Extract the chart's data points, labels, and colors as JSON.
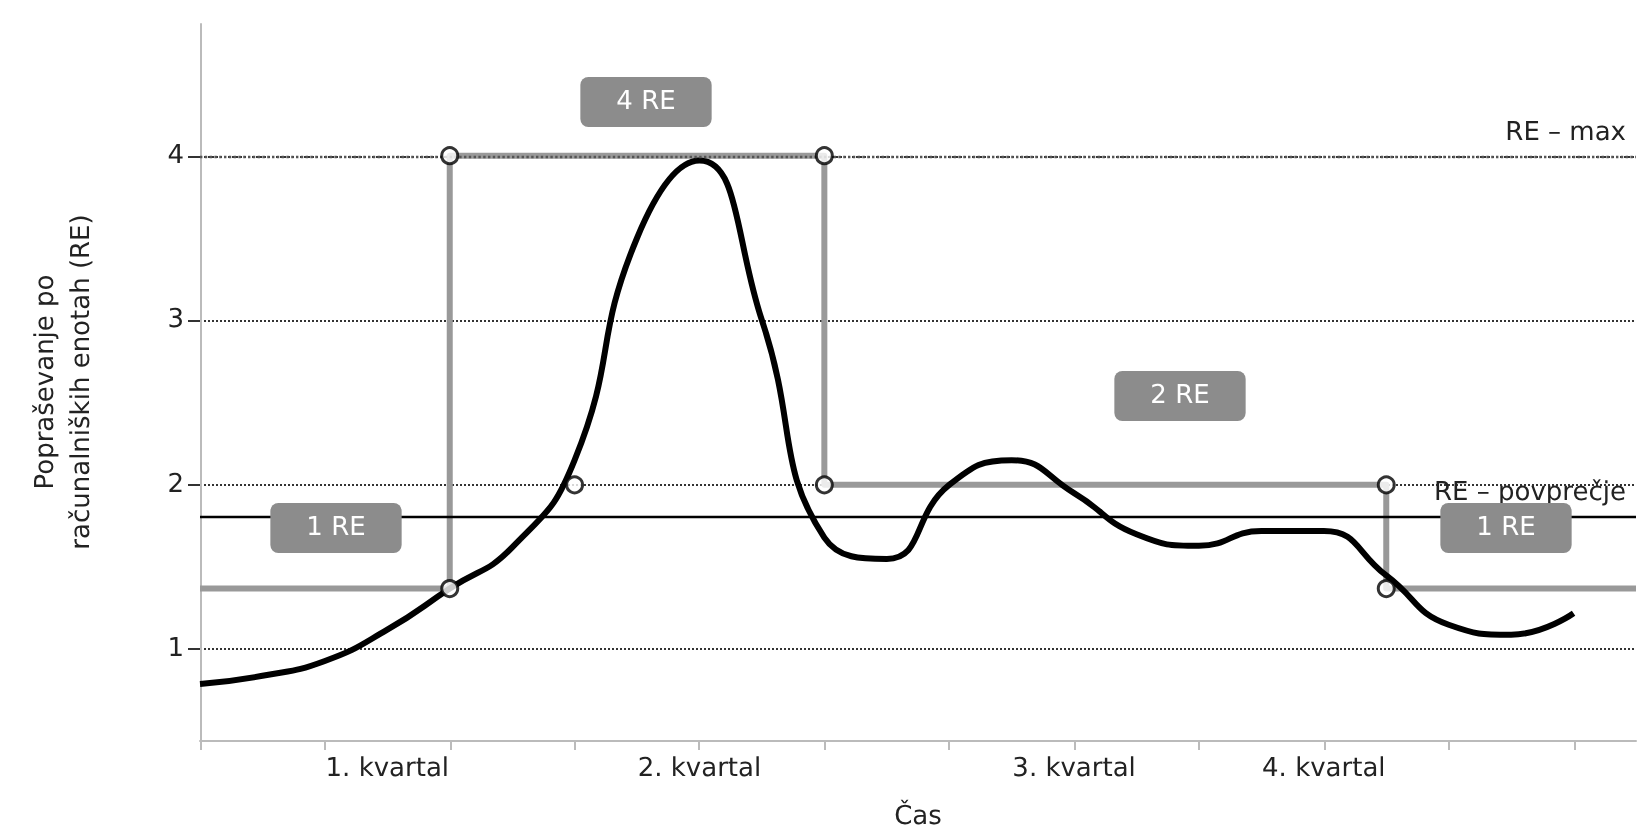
{
  "chart_data": {
    "type": "line",
    "xlabel": "Čas",
    "ylabel": "Popraševanje po\nračunalniških enotah (RE)",
    "categories": [
      null,
      null,
      null,
      "1. kvartal",
      null,
      null,
      null,
      null,
      "2. kvartal",
      null,
      null,
      null,
      null,
      null,
      "3. kvartal",
      null,
      null,
      null,
      "4. kvartal",
      null,
      null,
      null,
      null,
      null
    ],
    "ylim": [
      0.45,
      4.8
    ],
    "yticks": [
      1,
      2,
      3,
      4
    ],
    "grid": "y",
    "series": [
      {
        "color": "#000000",
        "marker": "none",
        "values": [
          0.79,
          0.84,
          0.93,
          1.12,
          1.37,
          1.62,
          2.15,
          3.5,
          3.97,
          3.0,
          1.68,
          1.55,
          2.0,
          2.15,
          1.95,
          1.7,
          1.63,
          1.72,
          1.72,
          1.45,
          1.15,
          1.09,
          1.22,
          null
        ]
      },
      {
        "type": "step",
        "color": "#999999",
        "marker": "none",
        "values": [
          1.37,
          1.37,
          1.37,
          1.37,
          4,
          4,
          4,
          4,
          4,
          4,
          2,
          2,
          2,
          2,
          2,
          2,
          2,
          2,
          2,
          1.37,
          1.37,
          1.37,
          1.37,
          1.37
        ]
      },
      {
        "type": "scatter",
        "color": "#000000",
        "marker": "circle",
        "values": [
          null,
          null,
          null,
          null,
          1.37,
          null,
          2,
          null,
          null,
          null,
          2,
          null,
          null,
          null,
          null,
          null,
          null,
          null,
          null,
          1.37,
          null,
          null,
          null,
          null
        ]
      },
      {
        "type": "scatter",
        "color": "#000000",
        "marker": "circle",
        "values": [
          null,
          null,
          null,
          null,
          4,
          null,
          null,
          null,
          null,
          null,
          4,
          null,
          null,
          null,
          null,
          null,
          null,
          null,
          null,
          2,
          null,
          null,
          null,
          null
        ]
      }
    ],
    "ref_lines": [
      {
        "axis": "y",
        "value": 1.81,
        "label": "RE – povprečje",
        "color": "#000000",
        "line_style": "solid"
      },
      {
        "axis": "y",
        "value": 4,
        "label": "RE – max",
        "color": "#555555",
        "line_style": "dotted"
      }
    ],
    "annotations": [
      "1 RE",
      "4 RE",
      "2 RE",
      "1 RE"
    ]
  }
}
